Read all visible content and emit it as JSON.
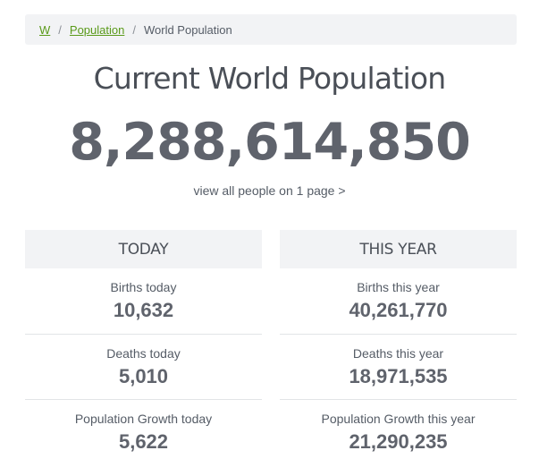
{
  "breadcrumb": {
    "home": "W",
    "section": "Population",
    "current": "World Population",
    "separator": "/"
  },
  "title": "Current World Population",
  "counter": "8,288,614,850",
  "view_link": "view all people on 1 page >",
  "today": {
    "header": "TODAY",
    "stats": [
      {
        "label": "Births today",
        "value": "10,632"
      },
      {
        "label": "Deaths today",
        "value": "5,010"
      },
      {
        "label": "Population Growth today",
        "value": "5,622"
      }
    ]
  },
  "this_year": {
    "header": "THIS YEAR",
    "stats": [
      {
        "label": "Births this year",
        "value": "40,261,770"
      },
      {
        "label": "Deaths this year",
        "value": "18,971,535"
      },
      {
        "label": "Population Growth this year",
        "value": "21,290,235"
      }
    ]
  },
  "colors": {
    "link_green": "#5a9a1a",
    "panel_bg": "#f2f3f5",
    "text": "#555c66",
    "counter": "#5f636c"
  }
}
